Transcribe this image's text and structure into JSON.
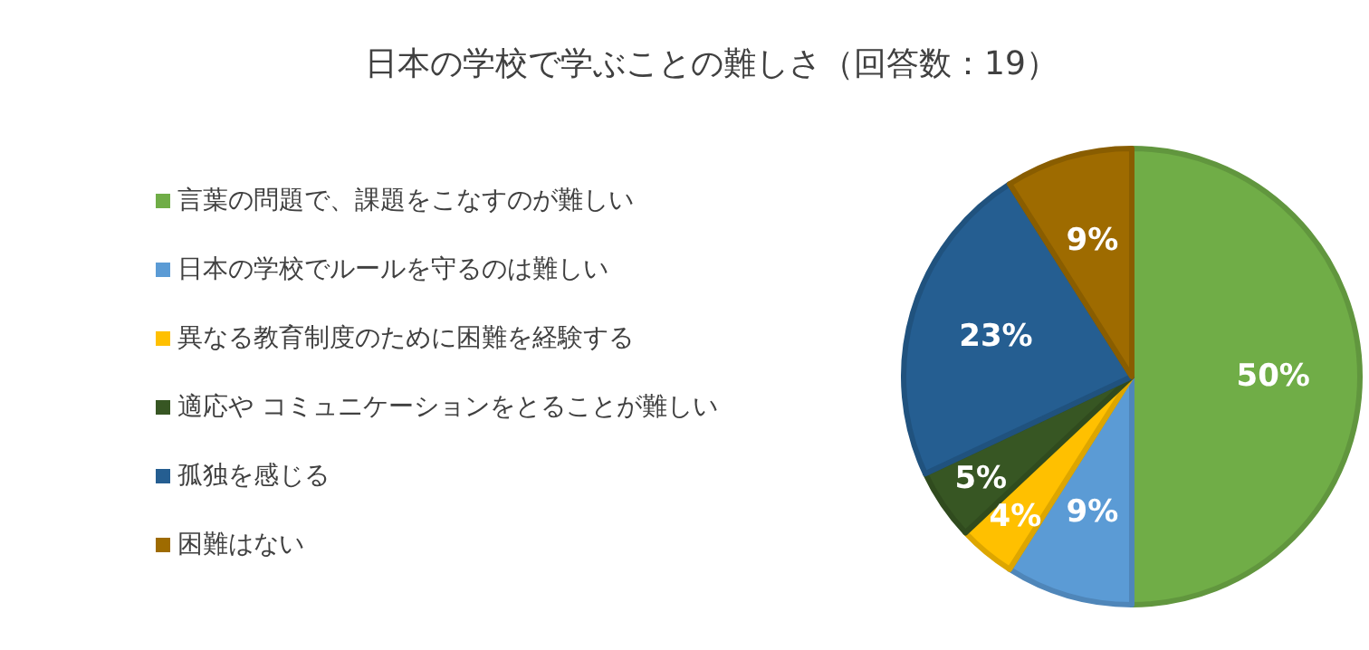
{
  "chart_data": {
    "type": "pie",
    "title": "日本の学校で学ぶことの難しさ（回答数：19）",
    "categories": [
      "言葉の問題で、課題をこなすのが難しい",
      "日本の学校でルールを守るのは難しい",
      "異なる教育制度のために困難を経験する",
      "適応や コミュニケーションをとることが難しい",
      "孤独を感じる",
      "困難はない"
    ],
    "values": [
      50,
      9,
      4,
      5,
      23,
      9
    ],
    "colors": [
      "#70ad47",
      "#5b9bd5",
      "#ffc000",
      "#375623",
      "#255e91",
      "#9e6b00"
    ],
    "value_labels": [
      "50%",
      "9%",
      "4%",
      "5%",
      "23%",
      "9%"
    ],
    "legend": "left"
  }
}
